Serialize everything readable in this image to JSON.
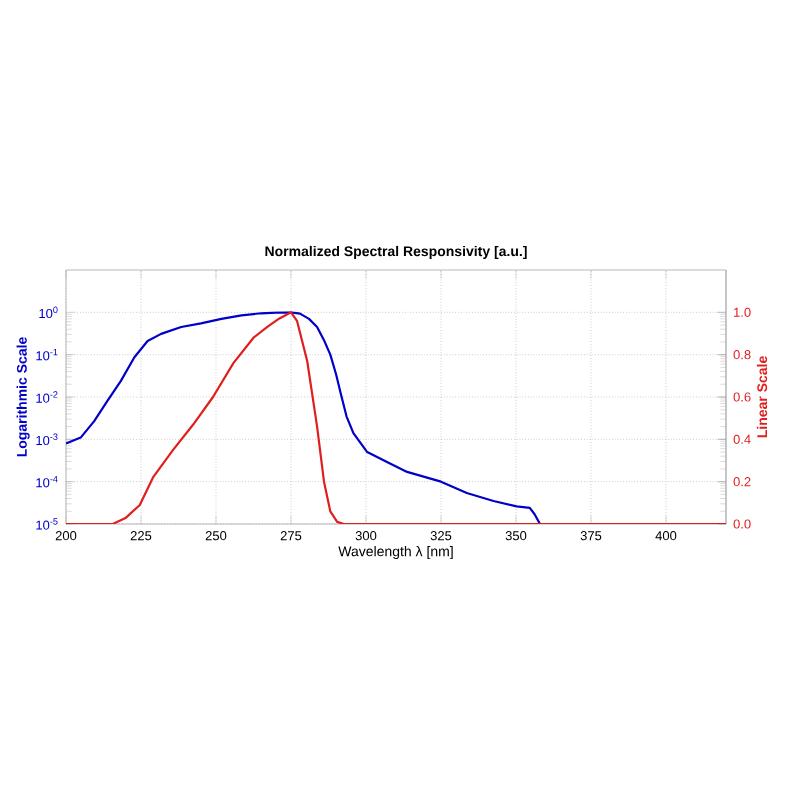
{
  "chart_data": {
    "type": "line",
    "title": "Normalized Spectral Responsivity [a.u.]",
    "xlabel": "Wavelength λ [nm]",
    "ylabel": "Logarithmic Scale",
    "y2label": "Linear Scale",
    "log": "y",
    "grid": true,
    "xlim": [
      200,
      420
    ],
    "xticks": [
      200,
      225,
      250,
      275,
      300,
      325,
      350,
      375,
      400
    ],
    "ylim": [
      1e-05,
      10
    ],
    "yticks": [
      {
        "value": 1e-05,
        "label": "10$^{-5}$"
      },
      {
        "value": 0.0001,
        "label": "10$^{-4}$"
      },
      {
        "value": 0.001,
        "label": "10$^{-3}$"
      },
      {
        "value": 0.01,
        "label": "10$^{-2}$"
      },
      {
        "value": 0.1,
        "label": "10$^{-1}$"
      },
      {
        "value": 1,
        "label": "10$^{0}$"
      }
    ],
    "y2lim": [
      0,
      1.2
    ],
    "y2ticks": [
      {
        "value": 0,
        "label": "0.0"
      },
      {
        "value": 0.2,
        "label": "0.2"
      },
      {
        "value": 0.4,
        "label": "0.4"
      },
      {
        "value": 0.6,
        "label": "0.6"
      },
      {
        "value": 0.8,
        "label": "0.8"
      },
      {
        "value": 1,
        "label": "1.0"
      }
    ],
    "series": [
      {
        "color": "#0000c8",
        "x": [
          200,
          204.9,
          209.4,
          213.8,
          218.3,
          222.8,
          227.2,
          231.7,
          238.4,
          245,
          251.8,
          258.5,
          265,
          270,
          275,
          278,
          281,
          283.7,
          286,
          288.1,
          290,
          291.6,
          293.5,
          295.8,
          300.4,
          307,
          313.7,
          325,
          333.6,
          342.5,
          350.2,
          354.6,
          356.2,
          358
        ],
        "values": [
          0.0008,
          0.0011,
          0.0027,
          0.0081,
          0.024,
          0.087,
          0.21,
          0.31,
          0.45,
          0.55,
          0.7,
          0.85,
          0.95,
          0.98,
          1.0,
          0.93,
          0.7,
          0.45,
          0.22,
          0.1,
          0.035,
          0.012,
          0.0035,
          0.0014,
          0.0005,
          0.00029,
          0.00017,
          0.0001,
          5.4e-05,
          3.5e-05,
          2.6e-05,
          2.4e-05,
          1.7e-05,
          1e-05
        ]
      },
      {
        "color": "#e01e1e",
        "axis": "y2",
        "x": [
          200,
          215.6,
          220,
          224.6,
          229,
          235.7,
          242.4,
          249,
          255.8,
          262.5,
          267,
          271,
          275,
          277,
          280.4,
          283.7,
          286,
          288.1,
          290.4,
          292.6,
          420
        ],
        "values": [
          0,
          0,
          0.03,
          0.09,
          0.22,
          0.35,
          0.47,
          0.6,
          0.76,
          0.88,
          0.93,
          0.97,
          1.0,
          0.96,
          0.77,
          0.46,
          0.2,
          0.06,
          0.01,
          0,
          0
        ]
      }
    ]
  }
}
